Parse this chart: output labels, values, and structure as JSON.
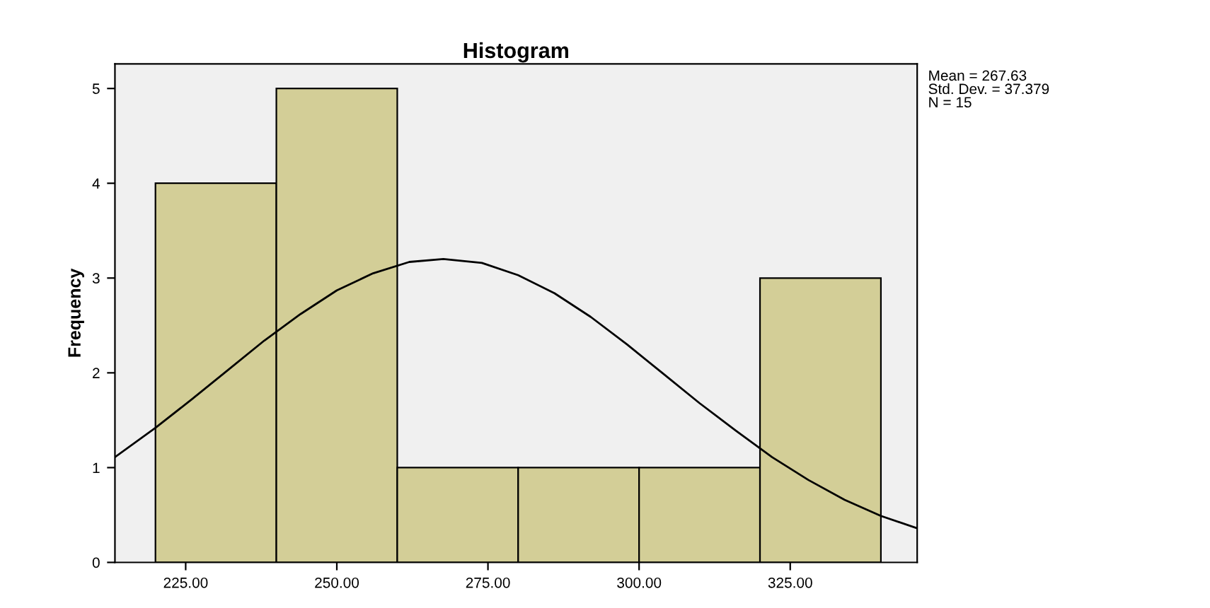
{
  "chart_data": {
    "type": "histogram",
    "title": "Histogram",
    "ylabel": "Frequency",
    "bins": [
      220,
      240,
      260,
      280,
      300,
      320,
      340
    ],
    "values": [
      4,
      5,
      1,
      1,
      1,
      3
    ],
    "color": "#d3ce97",
    "series": [
      {
        "type": "line",
        "color": "#000000",
        "x": [
          213.3,
          220,
          226,
          232,
          238,
          244,
          250,
          256,
          262,
          267.63,
          274,
          280,
          286,
          292,
          298,
          304,
          310,
          316,
          322,
          328,
          334,
          340,
          346
        ],
        "values": [
          1.11,
          1.42,
          1.72,
          2.03,
          2.34,
          2.62,
          2.87,
          3.05,
          3.17,
          3.2,
          3.16,
          3.03,
          2.84,
          2.59,
          2.3,
          1.99,
          1.68,
          1.39,
          1.11,
          0.87,
          0.66,
          0.49,
          0.36
        ]
      }
    ],
    "xlim": [
      213.3,
      346
    ],
    "xticks": [
      {
        "value": 225,
        "label": "225.00"
      },
      {
        "value": 250,
        "label": "250.00"
      },
      {
        "value": 275,
        "label": "275.00"
      },
      {
        "value": 300,
        "label": "300.00"
      },
      {
        "value": 325,
        "label": "325.00"
      }
    ],
    "ylim": [
      0,
      5.26
    ],
    "yticks": [
      0,
      1,
      2,
      3,
      4,
      5
    ],
    "grid": false,
    "legend": false,
    "annotations": [
      "Mean = 267.63",
      "Std. Dev. = 37.379",
      "N = 15"
    ]
  }
}
